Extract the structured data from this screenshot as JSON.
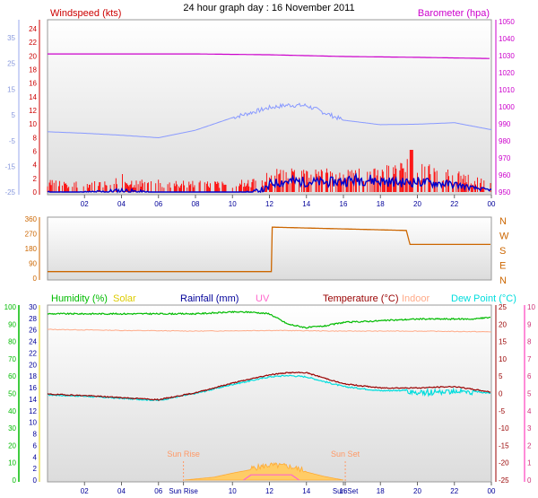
{
  "title": "24 hour graph day : 16 November 2011",
  "colors": {
    "wind": "#cc0000",
    "gust": "#ff0000",
    "avgwind": "#0000cc",
    "baro": "#cc00cc",
    "winddir": "#cc6600",
    "humidity": "#00bb00",
    "solar": "#ddcc00",
    "rain": "#000099",
    "uv": "#ff66cc",
    "temp": "#990000",
    "indoor": "#ffaa88",
    "dew": "#00dddd",
    "inhum": "#ff99aa",
    "tempalt": "#8899ff",
    "sun": "#ff9966"
  },
  "chart_data": [
    {
      "type": "line",
      "panel": "wind-baro",
      "left_axis_label": "Windspeed (kts)",
      "right_axis_label": "Barometer (hpa)",
      "left_ticks": [
        "24",
        "22",
        "20",
        "18",
        "16",
        "14",
        "12",
        "10",
        "8",
        "6",
        "4",
        "2",
        "0"
      ],
      "outer_left_ticks": [
        "35",
        "25",
        "15",
        "5",
        "-5",
        "-15",
        "-25"
      ],
      "right_ticks": [
        "1050",
        "1040",
        "1030",
        "1020",
        "1010",
        "1000",
        "990",
        "980",
        "970",
        "960",
        "950"
      ],
      "x_ticks": [
        "02",
        "04",
        "06",
        "08",
        "10",
        "12",
        "14",
        "16",
        "18",
        "20",
        "22",
        "00"
      ],
      "series": [
        {
          "name": "Barometer (hpa)",
          "axis": "right",
          "x": [
            0,
            4,
            8,
            12,
            16,
            20,
            24
          ],
          "y": [
            1031,
            1031,
            1031,
            1030.5,
            1029.5,
            1029,
            1028.3
          ]
        },
        {
          "name": "Windspeed (kts)",
          "axis": "left",
          "x": [
            0,
            1,
            2,
            3,
            4,
            5,
            6,
            7,
            8,
            9,
            10,
            11,
            12,
            13,
            14,
            15,
            16,
            17,
            18,
            19,
            20,
            21,
            22,
            23,
            24
          ],
          "y": [
            0.5,
            0.4,
            0.5,
            0.6,
            0.8,
            0.6,
            0.4,
            0.3,
            0.3,
            0.3,
            0.4,
            0.5,
            1.2,
            1.6,
            1.5,
            1.4,
            1.6,
            1.9,
            1.6,
            1.4,
            1.5,
            1.3,
            1.1,
            0.6,
            0.3
          ]
        },
        {
          "name": "Gust",
          "axis": "left",
          "x": [
            0,
            1,
            2,
            3,
            4,
            5,
            6,
            7,
            8,
            9,
            10,
            11,
            12,
            13,
            14,
            15,
            16,
            17,
            18,
            19,
            20,
            21,
            22,
            23,
            24
          ],
          "y": [
            1.4,
            1.4,
            1.4,
            1.4,
            2.1,
            1.4,
            1.4,
            1.4,
            1.4,
            1.4,
            1.4,
            1.4,
            2.6,
            2.8,
            2.6,
            2.8,
            2.4,
            2.8,
            3.0,
            3.4,
            4.2,
            3.2,
            2.6,
            1.8,
            1.2
          ]
        },
        {
          "name": "Temperature alt",
          "axis": "outer_left",
          "x": [
            0,
            2,
            4,
            6,
            8,
            10,
            12,
            13,
            14,
            16,
            18,
            20,
            22,
            24
          ],
          "y": [
            -1,
            -1.6,
            -2.4,
            -3.4,
            -0.4,
            4.6,
            8.6,
            9.6,
            9.4,
            3.6,
            1.8,
            2.0,
            2.6,
            -0.2
          ]
        }
      ]
    },
    {
      "type": "line",
      "panel": "wind-direction",
      "left_ticks": [
        "360",
        "270",
        "180",
        "90",
        "0"
      ],
      "right_labels": [
        "N",
        "W",
        "S",
        "E",
        "N"
      ],
      "series": [
        {
          "name": "Wind direction",
          "x": [
            0,
            12.1,
            12.15,
            19.4,
            19.6,
            24
          ],
          "y": [
            40,
            40,
            310,
            290,
            205,
            205
          ]
        }
      ]
    },
    {
      "type": "line",
      "panel": "temp-humidity",
      "labels": {
        "humidity": "Humidity (%)",
        "solar": "Solar",
        "rain": "Rainfall (mm)",
        "uv": "UV",
        "temp": "Temperature (°C)",
        "indoor": "Indoor",
        "dew": "Dew Point (°C)"
      },
      "humidity_ticks": [
        "100",
        "90",
        "80",
        "70",
        "60",
        "50",
        "40",
        "30",
        "20",
        "10",
        "0"
      ],
      "solar_ticks": [
        "30",
        "28",
        "26",
        "24",
        "22",
        "20",
        "18",
        "16",
        "14",
        "12",
        "10",
        "8",
        "6",
        "4",
        "2",
        "0"
      ],
      "temp_ticks": [
        "25",
        "20",
        "15",
        "10",
        "5",
        "0",
        "-5",
        "-10",
        "-15",
        "-20",
        "-25"
      ],
      "uv_ticks": [
        "10",
        "9",
        "8",
        "7",
        "6",
        "5",
        "4",
        "3",
        "2",
        "1",
        "0"
      ],
      "x_ticks": [
        "02",
        "04",
        "06",
        "Sun Rise",
        "10",
        "12",
        "14",
        "Sun Set",
        "16",
        "18",
        "20",
        "22",
        "00"
      ],
      "sun_rise": {
        "label": "Sun Rise",
        "x": 7.35
      },
      "sun_set": {
        "label": "Sun Set",
        "x": 16.1
      },
      "series": [
        {
          "name": "Humidity (%)",
          "x": [
            0,
            2,
            4,
            6,
            8,
            10,
            11,
            12,
            13,
            14,
            15,
            16,
            18,
            20,
            22,
            23,
            24
          ],
          "y": [
            96,
            96,
            96,
            96,
            96,
            97,
            97,
            96,
            90,
            88,
            89,
            91,
            92,
            93,
            93,
            93,
            94
          ]
        },
        {
          "name": "Indoor",
          "axis": "temp",
          "x": [
            0,
            4,
            8,
            12,
            16,
            20,
            24
          ],
          "y": [
            18.5,
            18.2,
            18.0,
            18.2,
            18.0,
            18.0,
            17.8
          ]
        },
        {
          "name": "Temperature (°C)",
          "axis": "temp",
          "x": [
            0,
            2,
            4,
            6,
            8,
            10,
            12,
            13,
            14,
            16,
            18,
            20,
            22,
            24
          ],
          "y": [
            -0.2,
            -0.6,
            -1.2,
            -1.8,
            0.2,
            3.0,
            5.4,
            6.0,
            6.0,
            2.8,
            1.6,
            1.6,
            2.0,
            0.4
          ]
        },
        {
          "name": "Dew Point (°C)",
          "axis": "temp",
          "x": [
            0,
            2,
            4,
            6,
            8,
            10,
            12,
            13,
            14,
            16,
            18,
            20,
            22,
            24
          ],
          "y": [
            -0.4,
            -0.8,
            -1.4,
            -2.0,
            0,
            2.6,
            4.8,
            5.2,
            4.8,
            2.0,
            0.8,
            1.0,
            1.4,
            0
          ]
        },
        {
          "name": "Solar",
          "axis": "solar",
          "x": [
            7.4,
            9,
            10,
            11,
            12,
            13,
            14,
            15,
            16
          ],
          "y": [
            0,
            0.5,
            1.2,
            1.8,
            2.4,
            2.2,
            1.4,
            0.6,
            0
          ]
        },
        {
          "name": "UV",
          "axis": "uv",
          "x": [
            10.6,
            11,
            13.2,
            13.6
          ],
          "y": [
            0,
            0.3,
            0.3,
            0
          ]
        }
      ]
    }
  ]
}
